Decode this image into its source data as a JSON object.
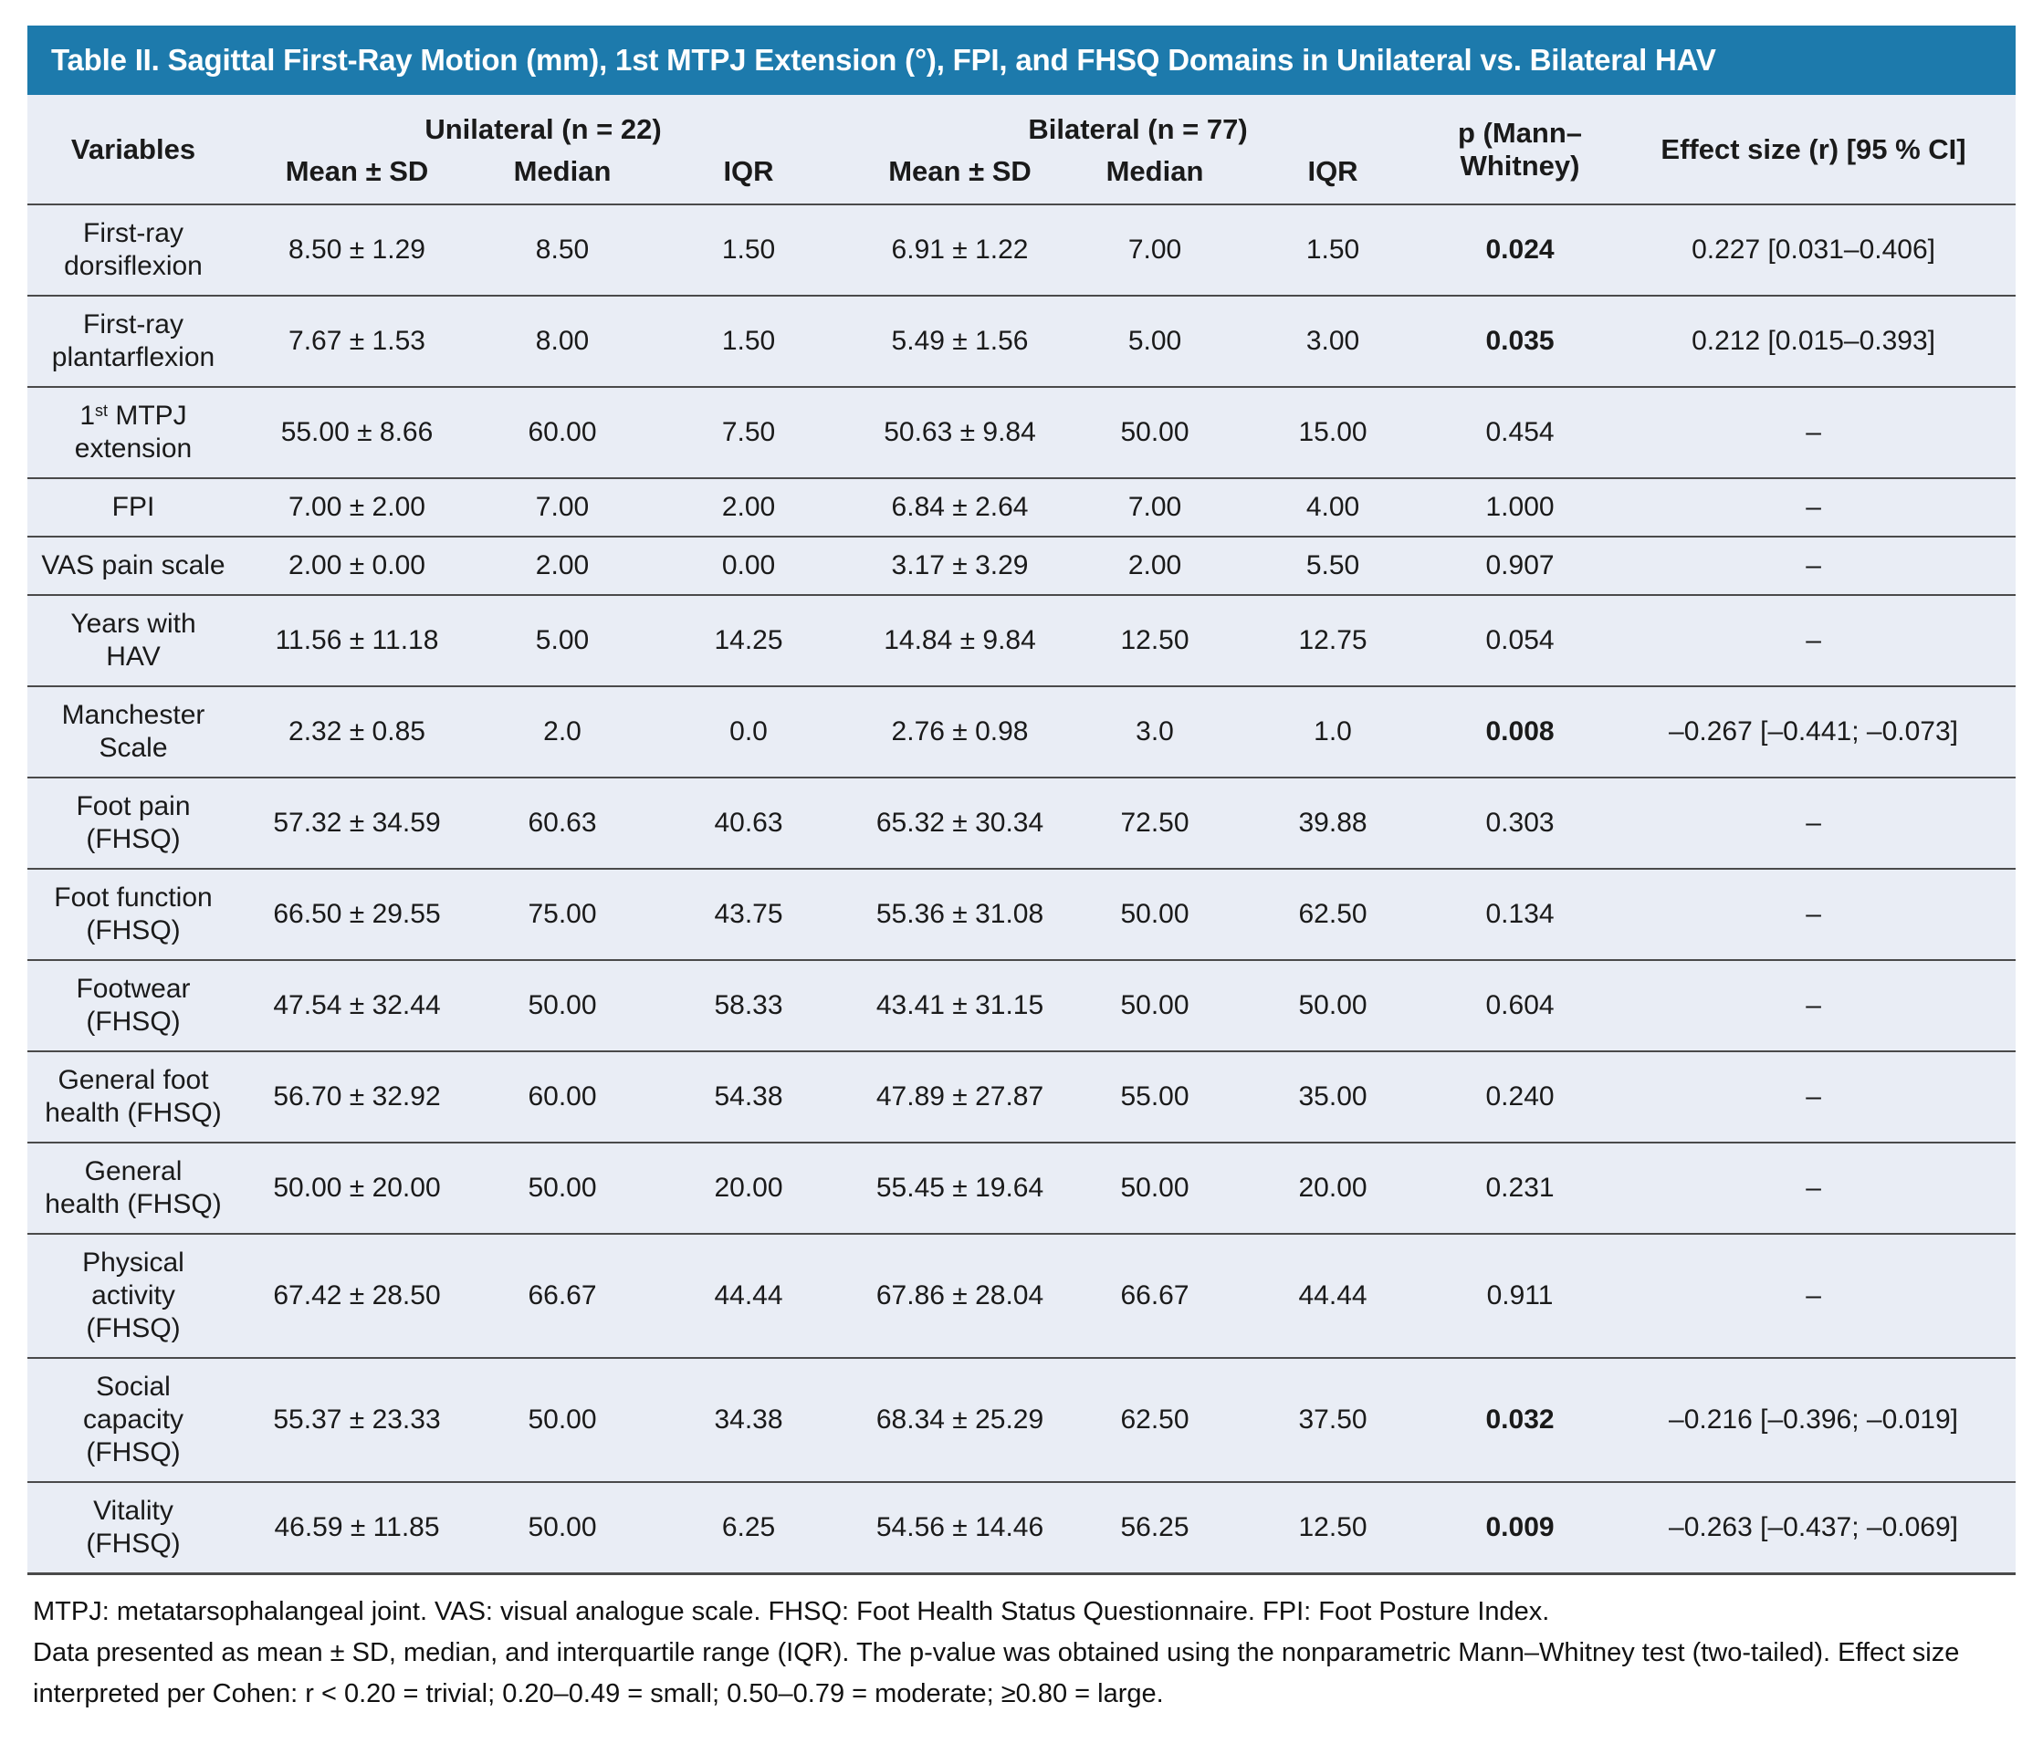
{
  "title": "Table II. Sagittal First-Ray Motion (mm), 1st MTPJ Extension (°), FPI, and FHSQ Domains in Unilateral vs. Bilateral HAV",
  "colors": {
    "accent_blue": "#1d7aac",
    "table_bg": "#e9edf5",
    "line": "#4a4a4a"
  },
  "header": {
    "variables": "Variables",
    "group_unilateral": "Unilateral (n = 22)",
    "group_bilateral": "Bilateral (n = 77)",
    "p_value": "p (Mann–\nWhitney)",
    "effect_size": "Effect size (r) [95 % CI]",
    "sub_columns": [
      "Mean ± SD",
      "Median",
      "IQR",
      "Mean ± SD",
      "Median",
      "IQR"
    ]
  },
  "rows": [
    {
      "variable": "First-ray\ndorsiflexion",
      "uni": [
        "8.50 ± 1.29",
        "8.50",
        "1.50"
      ],
      "bil": [
        "6.91 ± 1.22",
        "7.00",
        "1.50"
      ],
      "p": "0.024",
      "significant": true,
      "effect": "0.227 [0.031–0.406]"
    },
    {
      "variable": "First-ray\nplantarflexion",
      "uni": [
        "7.67 ± 1.53",
        "8.00",
        "1.50"
      ],
      "bil": [
        "5.49 ± 1.56",
        "5.00",
        "3.00"
      ],
      "p": "0.035",
      "significant": true,
      "effect": "0.212 [0.015–0.393]"
    },
    {
      "variable": "1st MTPJ\nextension",
      "variable_sup": {
        "pre": "1",
        "sup": "st",
        "post": " MTPJ\nextension"
      },
      "uni": [
        "55.00 ± 8.66",
        "60.00",
        "7.50"
      ],
      "bil": [
        "50.63 ± 9.84",
        "50.00",
        "15.00"
      ],
      "p": "0.454",
      "significant": false,
      "effect": "–"
    },
    {
      "variable": "FPI",
      "uni": [
        "7.00 ± 2.00",
        "7.00",
        "2.00"
      ],
      "bil": [
        "6.84 ± 2.64",
        "7.00",
        "4.00"
      ],
      "p": "1.000",
      "significant": false,
      "effect": "–"
    },
    {
      "variable": "VAS pain scale",
      "uni": [
        "2.00 ± 0.00",
        "2.00",
        "0.00"
      ],
      "bil": [
        "3.17 ± 3.29",
        "2.00",
        "5.50"
      ],
      "p": "0.907",
      "significant": false,
      "effect": "–"
    },
    {
      "variable": "Years with\nHAV",
      "uni": [
        "11.56 ± 11.18",
        "5.00",
        "14.25"
      ],
      "bil": [
        "14.84 ± 9.84",
        "12.50",
        "12.75"
      ],
      "p": "0.054",
      "significant": false,
      "effect": "–"
    },
    {
      "variable": "Manchester\nScale",
      "uni": [
        "2.32 ± 0.85",
        "2.0",
        "0.0"
      ],
      "bil": [
        "2.76 ± 0.98",
        "3.0",
        "1.0"
      ],
      "p": "0.008",
      "significant": true,
      "effect": "–0.267 [–0.441; –0.073]"
    },
    {
      "variable": "Foot pain\n(FHSQ)",
      "uni": [
        "57.32 ± 34.59",
        "60.63",
        "40.63"
      ],
      "bil": [
        "65.32 ± 30.34",
        "72.50",
        "39.88"
      ],
      "p": "0.303",
      "significant": false,
      "effect": "–"
    },
    {
      "variable": "Foot function\n(FHSQ)",
      "uni": [
        "66.50 ± 29.55",
        "75.00",
        "43.75"
      ],
      "bil": [
        "55.36 ± 31.08",
        "50.00",
        "62.50"
      ],
      "p": "0.134",
      "significant": false,
      "effect": "–"
    },
    {
      "variable": "Footwear\n(FHSQ)",
      "uni": [
        "47.54 ± 32.44",
        "50.00",
        "58.33"
      ],
      "bil": [
        "43.41 ± 31.15",
        "50.00",
        "50.00"
      ],
      "p": "0.604",
      "significant": false,
      "effect": "–"
    },
    {
      "variable": "General foot\nhealth (FHSQ)",
      "uni": [
        "56.70 ± 32.92",
        "60.00",
        "54.38"
      ],
      "bil": [
        "47.89 ± 27.87",
        "55.00",
        "35.00"
      ],
      "p": "0.240",
      "significant": false,
      "effect": "–"
    },
    {
      "variable": "General\nhealth (FHSQ)",
      "uni": [
        "50.00 ± 20.00",
        "50.00",
        "20.00"
      ],
      "bil": [
        "55.45 ± 19.64",
        "50.00",
        "20.00"
      ],
      "p": "0.231",
      "significant": false,
      "effect": "–"
    },
    {
      "variable": "Physical\nactivity\n(FHSQ)",
      "uni": [
        "67.42 ± 28.50",
        "66.67",
        "44.44"
      ],
      "bil": [
        "67.86 ± 28.04",
        "66.67",
        "44.44"
      ],
      "p": "0.911",
      "significant": false,
      "effect": "–"
    },
    {
      "variable": "Social\ncapacity\n(FHSQ)",
      "uni": [
        "55.37 ± 23.33",
        "50.00",
        "34.38"
      ],
      "bil": [
        "68.34 ± 25.29",
        "62.50",
        "37.50"
      ],
      "p": "0.032",
      "significant": true,
      "effect": "–0.216 [–0.396; –0.019]"
    },
    {
      "variable": "Vitality\n(FHSQ)",
      "uni": [
        "46.59 ± 11.85",
        "50.00",
        "6.25"
      ],
      "bil": [
        "54.56 ± 14.46",
        "56.25",
        "12.50"
      ],
      "p": "0.009",
      "significant": true,
      "effect": "–0.263 [–0.437; –0.069]"
    }
  ],
  "footnotes": [
    "MTPJ: metatarsophalangeal joint. VAS: visual analogue scale. FHSQ: Foot Health Status Questionnaire. FPI: Foot Posture Index.",
    "Data presented as mean ± SD, median, and interquartile range (IQR). The p-value was obtained using the nonparametric Mann–Whitney test (two-tailed). Effect size interpreted per Cohen: r < 0.20 = trivial; 0.20–0.49 = small; 0.50–0.79 = moderate; ≥0.80 = large."
  ]
}
